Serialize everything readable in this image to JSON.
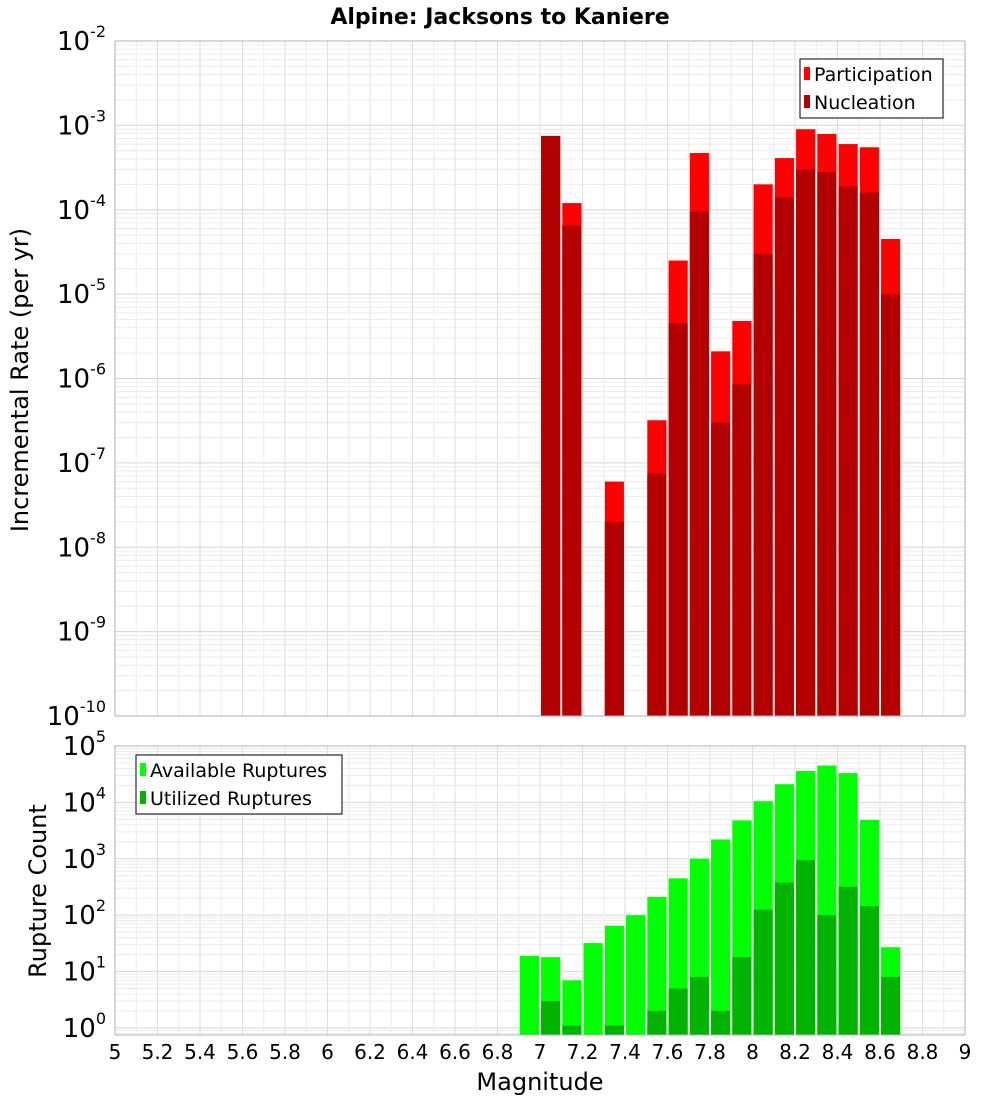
{
  "chart_data": [
    {
      "type": "bar",
      "title": "Alpine: Jacksons to Kaniere",
      "ylabel": "Incremental Rate (per yr)",
      "xlabel": "",
      "yscale": "log",
      "ylim": [
        1e-10,
        0.01
      ],
      "xlim": [
        5,
        9
      ],
      "grid": true,
      "legend_position": "top-right",
      "x": [
        7.05,
        7.15,
        7.35,
        7.55,
        7.65,
        7.75,
        7.85,
        7.95,
        8.05,
        8.15,
        8.25,
        8.35,
        8.45,
        8.55,
        8.65
      ],
      "series": [
        {
          "name": "Participation",
          "color": "#ff0000",
          "values": [
            0.00075,
            0.00012,
            6e-08,
            3.2e-07,
            2.5e-05,
            0.00047,
            2.1e-06,
            4.8e-06,
            0.0002,
            0.00041,
            0.0009,
            0.00079,
            0.0006,
            0.00055,
            4.5e-05
          ]
        },
        {
          "name": "Nucleation",
          "color": "#b30000",
          "values": [
            0.00075,
            6.5e-05,
            2e-08,
            7.5e-08,
            4.5e-06,
            9.5e-05,
            3e-07,
            8.5e-07,
            3e-05,
            0.00014,
            0.0003,
            0.00028,
            0.00019,
            0.00016,
            1e-05
          ]
        }
      ]
    },
    {
      "type": "bar",
      "title": "",
      "ylabel": "Rupture Count",
      "xlabel": "Magnitude",
      "yscale": "log",
      "ylim": [
        0.75,
        100000
      ],
      "xlim": [
        5,
        9
      ],
      "grid": true,
      "legend_position": "top-left",
      "x": [
        6.95,
        7.05,
        7.15,
        7.25,
        7.35,
        7.45,
        7.55,
        7.65,
        7.75,
        7.85,
        7.95,
        8.05,
        8.15,
        8.25,
        8.35,
        8.45,
        8.55,
        8.65
      ],
      "series": [
        {
          "name": "Available Ruptures",
          "color": "#00ff00",
          "values": [
            19,
            18,
            7,
            32,
            65,
            100,
            210,
            450,
            1000,
            2200,
            4800,
            10500,
            21000,
            36000,
            45000,
            33000,
            4900,
            27
          ]
        },
        {
          "name": "Utilized Ruptures",
          "color": "#00b300",
          "values": [
            0,
            3,
            1.1,
            0,
            1.1,
            0,
            2,
            5,
            8,
            2,
            18,
            125,
            380,
            950,
            100,
            320,
            145,
            8
          ]
        }
      ]
    }
  ],
  "rate_panel": {
    "title": "Alpine: Jacksons to Kaniere",
    "ylabel": "Incremental Rate (per yr)",
    "legend": [
      "Participation",
      "Nucleation"
    ],
    "yticks": [
      {
        "base": "10",
        "exp": "-2"
      },
      {
        "base": "10",
        "exp": "-3"
      },
      {
        "base": "10",
        "exp": "-4"
      },
      {
        "base": "10",
        "exp": "-5"
      },
      {
        "base": "10",
        "exp": "-6"
      },
      {
        "base": "10",
        "exp": "-7"
      },
      {
        "base": "10",
        "exp": "-8"
      },
      {
        "base": "10",
        "exp": "-9"
      },
      {
        "base": "10",
        "exp": "-10"
      }
    ]
  },
  "count_panel": {
    "ylabel": "Rupture Count",
    "xlabel": "Magnitude",
    "legend": [
      "Available Ruptures",
      "Utilized Ruptures"
    ],
    "yticks": [
      {
        "base": "10",
        "exp": "5"
      },
      {
        "base": "10",
        "exp": "4"
      },
      {
        "base": "10",
        "exp": "3"
      },
      {
        "base": "10",
        "exp": "2"
      },
      {
        "base": "10",
        "exp": "1"
      },
      {
        "base": "10",
        "exp": "0"
      }
    ],
    "xticks": [
      "5",
      "5.2",
      "5.4",
      "5.6",
      "5.8",
      "6",
      "6.2",
      "6.4",
      "6.6",
      "6.8",
      "7",
      "7.2",
      "7.4",
      "7.6",
      "7.8",
      "8",
      "8.2",
      "8.4",
      "8.6",
      "8.8",
      "9"
    ]
  }
}
